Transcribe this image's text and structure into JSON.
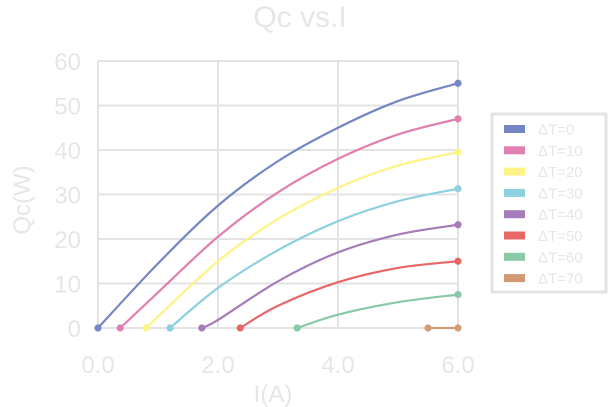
{
  "chart_data": {
    "type": "line",
    "title": "Qc vs.I",
    "xlabel": "I(A)",
    "ylabel": "Qc(W)",
    "xlim": [
      0,
      6
    ],
    "ylim": [
      0,
      60
    ],
    "xticks": [
      "0.0",
      "2.0",
      "4.0",
      "6.0"
    ],
    "xtick_values": [
      0,
      2,
      4,
      6
    ],
    "yticks": [
      "0",
      "10",
      "20",
      "30",
      "40",
      "50",
      "60"
    ],
    "ytick_values": [
      0,
      10,
      20,
      30,
      40,
      50,
      60
    ],
    "grid": true,
    "legend_position": "right",
    "series": [
      {
        "name": "ΔT=0",
        "color": "#7487c4",
        "x": [
          0,
          1,
          2,
          3,
          4,
          5,
          6
        ],
        "y": [
          0,
          14.5,
          27.5,
          37.5,
          45,
          51,
          55
        ]
      },
      {
        "name": "ΔT=10",
        "color": "#e07fb0",
        "x": [
          0.37,
          1,
          2,
          3,
          4,
          5,
          6
        ],
        "y": [
          0,
          8,
          20.5,
          30.5,
          38,
          43.5,
          47
        ]
      },
      {
        "name": "ΔT=20",
        "color": "#fef384",
        "x": [
          0.8,
          2,
          3,
          4,
          5,
          6
        ],
        "y": [
          0,
          15,
          24.5,
          31.5,
          36.5,
          39.5
        ]
      },
      {
        "name": "ΔT=30",
        "color": "#8fd0e0",
        "x": [
          1.2,
          2,
          3,
          4,
          5,
          6
        ],
        "y": [
          0,
          9,
          17.5,
          24,
          28.5,
          31.3
        ]
      },
      {
        "name": "ΔT=40",
        "color": "#a57bb8",
        "x": [
          1.73,
          2,
          3,
          4,
          5,
          6
        ],
        "y": [
          0,
          1.8,
          10.5,
          17,
          21,
          23.2
        ]
      },
      {
        "name": "ΔT=50",
        "color": "#e96667",
        "x": [
          2.37,
          3,
          4,
          5,
          6
        ],
        "y": [
          0,
          5,
          10.3,
          13.5,
          15
        ]
      },
      {
        "name": "ΔT=60",
        "color": "#88c9a8",
        "x": [
          3.32,
          4,
          5,
          6
        ],
        "y": [
          0,
          3,
          5.8,
          7.5
        ]
      },
      {
        "name": "ΔT=70",
        "color": "#d39b74",
        "x": [
          5.5,
          6
        ],
        "y": [
          0,
          0
        ]
      }
    ]
  }
}
